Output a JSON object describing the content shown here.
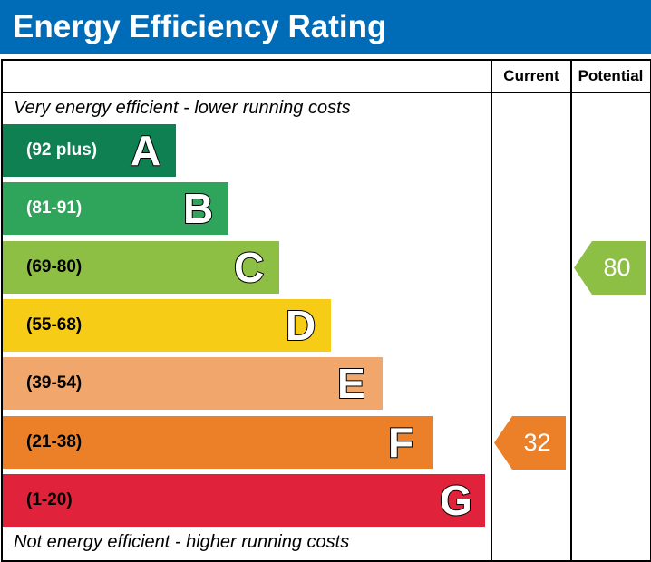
{
  "title": "Energy Efficiency Rating",
  "columns": {
    "current": "Current",
    "potential": "Potential"
  },
  "captions": {
    "top": "Very energy efficient - lower running costs",
    "bottom": "Not energy efficient - higher running costs"
  },
  "chart_data": {
    "type": "bar",
    "title": "Energy Efficiency Rating",
    "categories": [
      "A",
      "B",
      "C",
      "D",
      "E",
      "F",
      "G"
    ],
    "bands": [
      {
        "letter": "A",
        "range": "(92 plus)",
        "min": 92,
        "max": 100,
        "color": "#0f8052",
        "text_color": "#ffffff"
      },
      {
        "letter": "B",
        "range": "(81-91)",
        "min": 81,
        "max": 91,
        "color": "#2ea55b",
        "text_color": "#ffffff"
      },
      {
        "letter": "C",
        "range": "(69-80)",
        "min": 69,
        "max": 80,
        "color": "#8dbf44",
        "text_color": "#000000"
      },
      {
        "letter": "D",
        "range": "(55-68)",
        "min": 55,
        "max": 68,
        "color": "#f6cc16",
        "text_color": "#000000"
      },
      {
        "letter": "E",
        "range": "(39-54)",
        "min": 39,
        "max": 54,
        "color": "#f1a76b",
        "text_color": "#000000"
      },
      {
        "letter": "F",
        "range": "(21-38)",
        "min": 21,
        "max": 38,
        "color": "#ec8029",
        "text_color": "#000000"
      },
      {
        "letter": "G",
        "range": "(1-20)",
        "min": 1,
        "max": 20,
        "color": "#e1223b",
        "text_color": "#000000"
      }
    ],
    "ratings": {
      "current": {
        "value": 32,
        "band": "F",
        "color": "#ec8029"
      },
      "potential": {
        "value": 80,
        "band": "C",
        "color": "#8dbf44"
      }
    }
  }
}
